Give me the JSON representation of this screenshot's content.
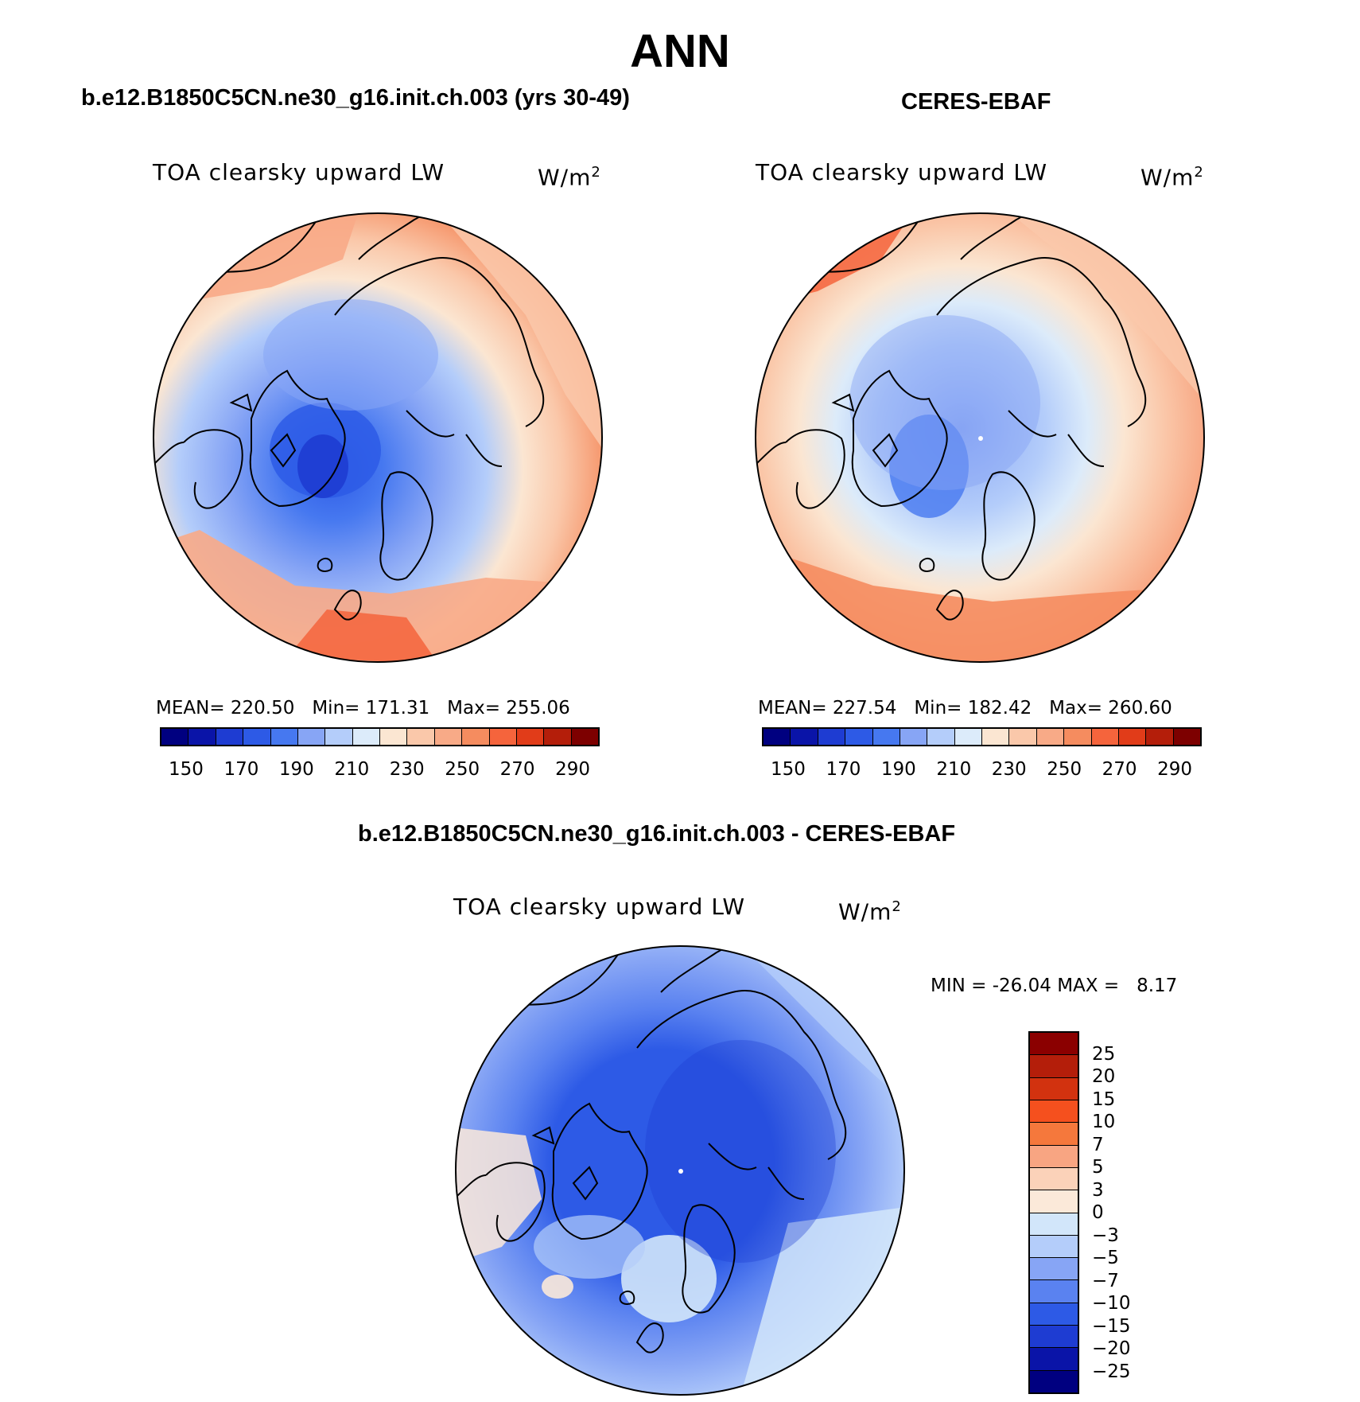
{
  "figure": {
    "title": "ANN"
  },
  "panels": [
    {
      "case": "b.e12.B1850C5CN.ne30_g16.init.ch.003 (yrs 30-49)",
      "field": "TOA clearsky upward LW",
      "units_base": "W/m",
      "units_exp": "2",
      "stats": {
        "mean": "220.50",
        "min": "171.31",
        "max": "255.06"
      }
    },
    {
      "case": "CERES-EBAF",
      "field": "TOA clearsky upward LW",
      "units_base": "W/m",
      "units_exp": "2",
      "stats": {
        "mean": "227.54",
        "min": "182.42",
        "max": "260.60"
      }
    },
    {
      "case": "b.e12.B1850C5CN.ne30_g16.init.ch.003 - CERES-EBAF",
      "field": "TOA clearsky upward LW",
      "units_base": "W/m",
      "units_exp": "2",
      "stats": {
        "min": "-26.04",
        "max": "8.17"
      }
    }
  ],
  "labels": {
    "mean": "MEAN=",
    "min": "Min=",
    "max": "Max=",
    "diff_min": "MIN =",
    "diff_max": "MAX ="
  },
  "colorbar_abs": {
    "ticks": [
      "150",
      "170",
      "190",
      "210",
      "230",
      "250",
      "270",
      "290"
    ],
    "colors": [
      "#000080",
      "#0a14a8",
      "#1e3cd2",
      "#2d5ae6",
      "#4678f0",
      "#87a5f5",
      "#b4cdfa",
      "#dcebfa",
      "#fbe6d2",
      "#fac8aa",
      "#f8aa87",
      "#f58c5f",
      "#f5643c",
      "#e13c19",
      "#b41e0a",
      "#7d0000"
    ]
  },
  "colorbar_diff": {
    "ticks": [
      "25",
      "20",
      "15",
      "10",
      "7",
      "5",
      "3",
      "0",
      "−3",
      "−5",
      "−7",
      "−10",
      "−15",
      "−20",
      "−25"
    ],
    "colors": [
      "#8b0000",
      "#b41e0a",
      "#d2320f",
      "#f5501e",
      "#f5783c",
      "#f8a582",
      "#fbd2b9",
      "#fbe9d9",
      "#d2e6fa",
      "#b4cdfa",
      "#87a5f5",
      "#5a82f0",
      "#2d5ae6",
      "#1e3cd2",
      "#0a14a8",
      "#000080"
    ]
  },
  "chart_data": [
    {
      "type": "heatmap",
      "title": "b.e12.B1850C5CN.ne30_g16.init.ch.003 (yrs 30-49)",
      "variable": "TOA clearsky upward LW",
      "units": "W/m2",
      "projection": "north polar stereographic",
      "mean": 220.5,
      "min": 171.31,
      "max": 255.06,
      "levels": [
        150,
        160,
        170,
        180,
        190,
        200,
        210,
        220,
        230,
        240,
        250,
        260,
        270,
        280,
        290
      ]
    },
    {
      "type": "heatmap",
      "title": "CERES-EBAF",
      "variable": "TOA clearsky upward LW",
      "units": "W/m2",
      "projection": "north polar stereographic",
      "mean": 227.54,
      "min": 182.42,
      "max": 260.6,
      "levels": [
        150,
        160,
        170,
        180,
        190,
        200,
        210,
        220,
        230,
        240,
        250,
        260,
        270,
        280,
        290
      ]
    },
    {
      "type": "heatmap",
      "title": "b.e12.B1850C5CN.ne30_g16.init.ch.003 - CERES-EBAF",
      "variable": "TOA clearsky upward LW",
      "units": "W/m2",
      "projection": "north polar stereographic",
      "min": -26.04,
      "max": 8.17,
      "levels": [
        -25,
        -20,
        -15,
        -10,
        -7,
        -5,
        -3,
        0,
        3,
        5,
        7,
        10,
        15,
        20,
        25
      ]
    }
  ]
}
